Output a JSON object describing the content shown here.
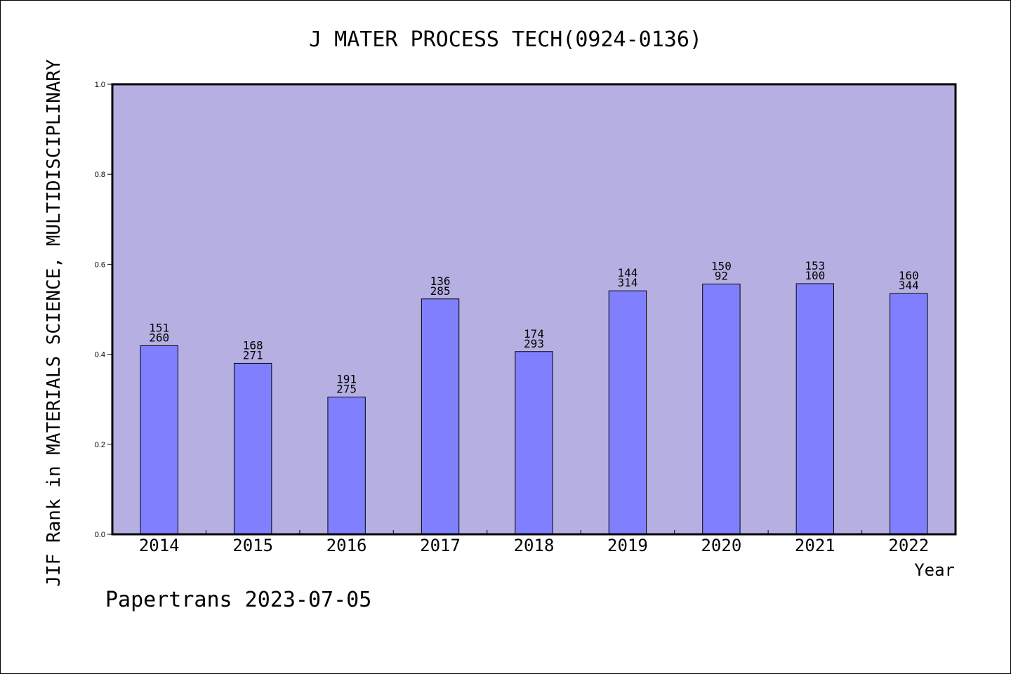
{
  "chart_data": {
    "type": "bar",
    "title": "J MATER PROCESS TECH(0924-0136)",
    "xlabel": "Year",
    "ylabel": "JIF Rank in MATERIALS SCIENCE, MULTIDISCIPLINARY",
    "ylim": [
      0,
      1.0
    ],
    "yticks": [
      "0.0",
      "0.2",
      "0.4",
      "0.6",
      "0.8",
      "1.0"
    ],
    "ytick_values": [
      0,
      0.2,
      0.4,
      0.6,
      0.8,
      1.0
    ],
    "categories": [
      "2014",
      "2015",
      "2016",
      "2017",
      "2018",
      "2019",
      "2020",
      "2021",
      "2022"
    ],
    "values": [
      0.419,
      0.38,
      0.305,
      0.523,
      0.406,
      0.541,
      0.556,
      0.557,
      0.535
    ],
    "labels_top": [
      "151",
      "168",
      "191",
      "136",
      "174",
      "144",
      "150",
      "153",
      "160"
    ],
    "labels_bottom": [
      "260",
      "271",
      "275",
      "285",
      "293",
      "314",
      "92",
      "100",
      "344"
    ],
    "grid": false,
    "colors": {
      "plot_bg": "#b6b0e2",
      "bar_fill": "#8080ff",
      "bar_stroke": "#000000"
    }
  },
  "footer": "Papertrans 2023-07-05"
}
